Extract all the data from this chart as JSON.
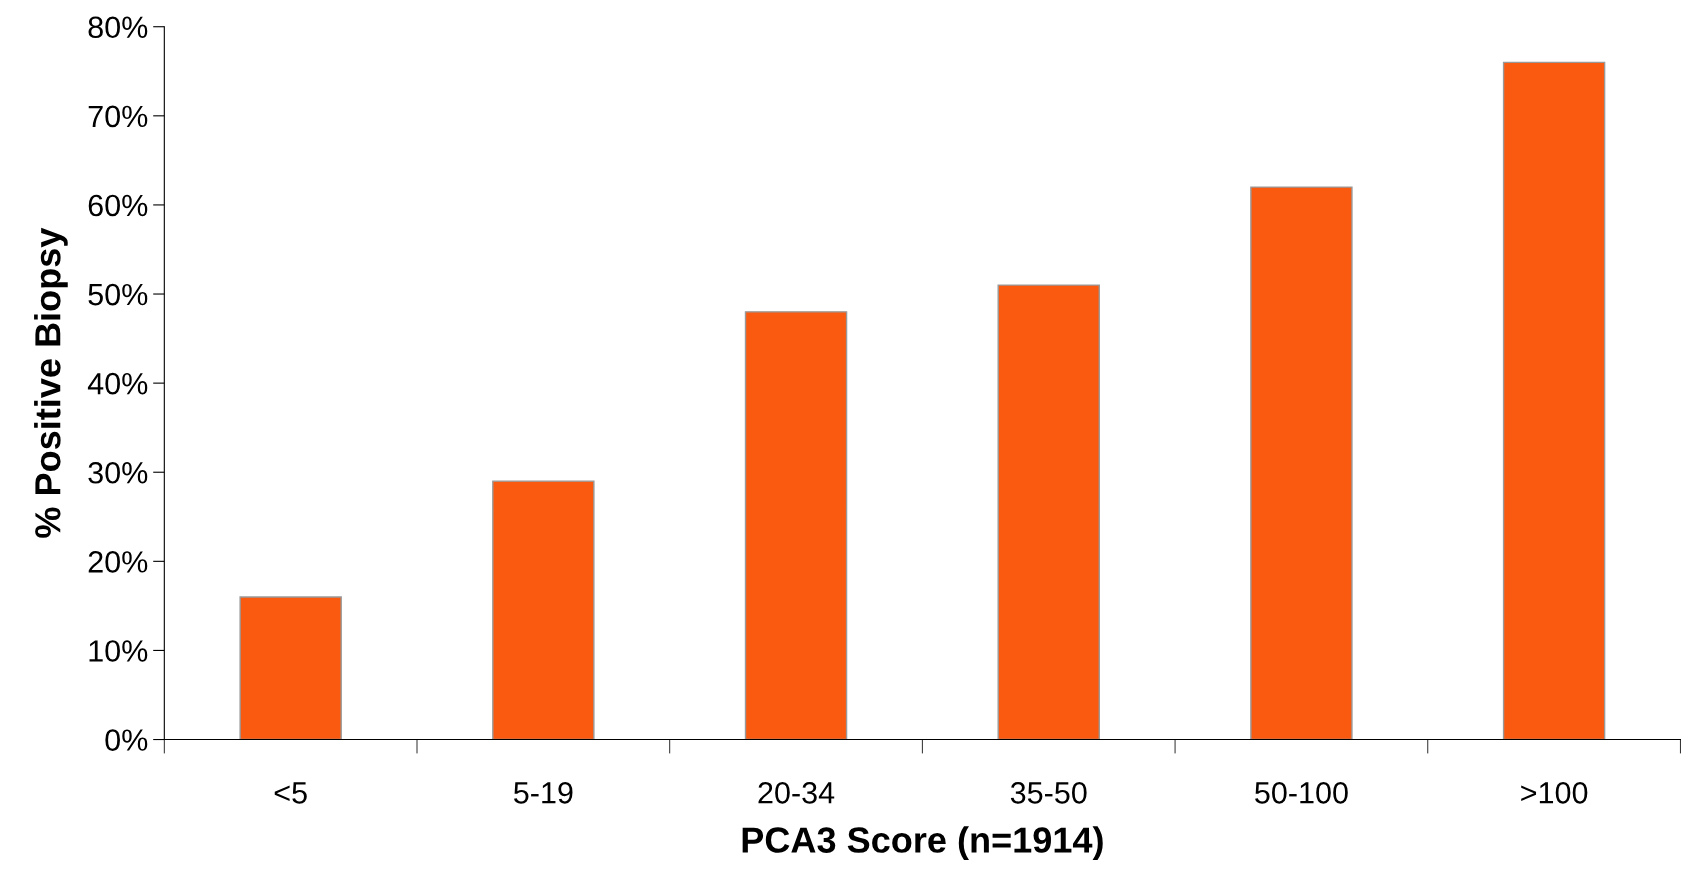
{
  "chart_data": {
    "type": "bar",
    "xlabel": "PCA3 Score (n=1914)",
    "ylabel": "% Positive Biopsy",
    "categories": [
      "<5",
      "5-19",
      "20-34",
      "35-50",
      "50-100",
      ">100"
    ],
    "values": [
      16,
      29,
      48,
      51,
      62,
      76
    ],
    "color": "#fa5a0f",
    "ylim": [
      0,
      80
    ],
    "yticks": [
      {
        "value": 0,
        "label": "0%"
      },
      {
        "value": 10,
        "label": "10%"
      },
      {
        "value": 20,
        "label": "20%"
      },
      {
        "value": 30,
        "label": "30%"
      },
      {
        "value": 40,
        "label": "40%"
      },
      {
        "value": 50,
        "label": "50%"
      },
      {
        "value": 60,
        "label": "60%"
      },
      {
        "value": 70,
        "label": "70%"
      },
      {
        "value": 80,
        "label": "80%"
      }
    ],
    "grid": false,
    "legend": false
  }
}
